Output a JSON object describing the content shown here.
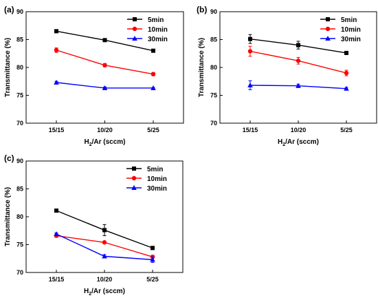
{
  "chart_data": [
    {
      "panel_label": "(a)",
      "type": "line",
      "categories": [
        "15/15",
        "10/20",
        "5/25"
      ],
      "xlabel": {
        "prefix": "H",
        "sub": "2",
        "suffix": "/Ar (sccm)"
      },
      "ylabel": "Transmittance (%)",
      "ylim": [
        70,
        90
      ],
      "yticks": [
        70,
        75,
        80,
        85,
        90
      ],
      "legend_position": "top-right",
      "series": [
        {
          "name": "5min",
          "color": "#000000",
          "marker": "square",
          "values": [
            86.5,
            84.9,
            83.0
          ],
          "errors": [
            0.2,
            0.2,
            0.2
          ]
        },
        {
          "name": "10min",
          "color": "#ff0000",
          "marker": "circle",
          "values": [
            83.1,
            80.4,
            78.8
          ],
          "errors": [
            0.4,
            0.3,
            0.3
          ]
        },
        {
          "name": "30min",
          "color": "#0000ff",
          "marker": "triangle",
          "values": [
            77.3,
            76.3,
            76.3
          ],
          "errors": [
            0.2,
            0.2,
            0.1
          ]
        }
      ]
    },
    {
      "panel_label": "(b)",
      "type": "line",
      "categories": [
        "15/15",
        "10/20",
        "5/25"
      ],
      "xlabel": {
        "prefix": "H",
        "sub": "2",
        "suffix": "/Ar (sccm)"
      },
      "ylabel": "Transmittance (%)",
      "ylim": [
        70,
        90
      ],
      "yticks": [
        70,
        75,
        80,
        85,
        90
      ],
      "legend_position": "top-right",
      "series": [
        {
          "name": "5min",
          "color": "#000000",
          "marker": "square",
          "values": [
            85.1,
            84.0,
            82.6
          ],
          "errors": [
            0.8,
            0.7,
            0.2
          ]
        },
        {
          "name": "10min",
          "color": "#ff0000",
          "marker": "circle",
          "values": [
            82.9,
            81.2,
            79.0
          ],
          "errors": [
            0.9,
            0.6,
            0.5
          ]
        },
        {
          "name": "30min",
          "color": "#0000ff",
          "marker": "triangle",
          "values": [
            76.8,
            76.7,
            76.2
          ],
          "errors": [
            0.8,
            0.3,
            0.2
          ]
        }
      ]
    },
    {
      "panel_label": "(c)",
      "type": "line",
      "categories": [
        "15/15",
        "10/20",
        "5/25"
      ],
      "xlabel": {
        "prefix": "H",
        "sub": "2",
        "suffix": "/Ar (sccm)"
      },
      "ylabel": "Transmittance (%)",
      "ylim": [
        70,
        90
      ],
      "yticks": [
        70,
        75,
        80,
        85,
        90
      ],
      "legend_position": "top-right",
      "series": [
        {
          "name": "5min",
          "color": "#000000",
          "marker": "square",
          "values": [
            81.1,
            77.6,
            74.4
          ],
          "errors": [
            0.2,
            1.0,
            0.3
          ]
        },
        {
          "name": "10min",
          "color": "#ff0000",
          "marker": "circle",
          "values": [
            76.6,
            75.4,
            72.8
          ],
          "errors": [
            0.3,
            0.2,
            0.3
          ]
        },
        {
          "name": "30min",
          "color": "#0000ff",
          "marker": "triangle",
          "values": [
            76.9,
            72.9,
            72.3
          ],
          "errors": [
            0.2,
            0.3,
            0.5
          ]
        }
      ]
    }
  ]
}
